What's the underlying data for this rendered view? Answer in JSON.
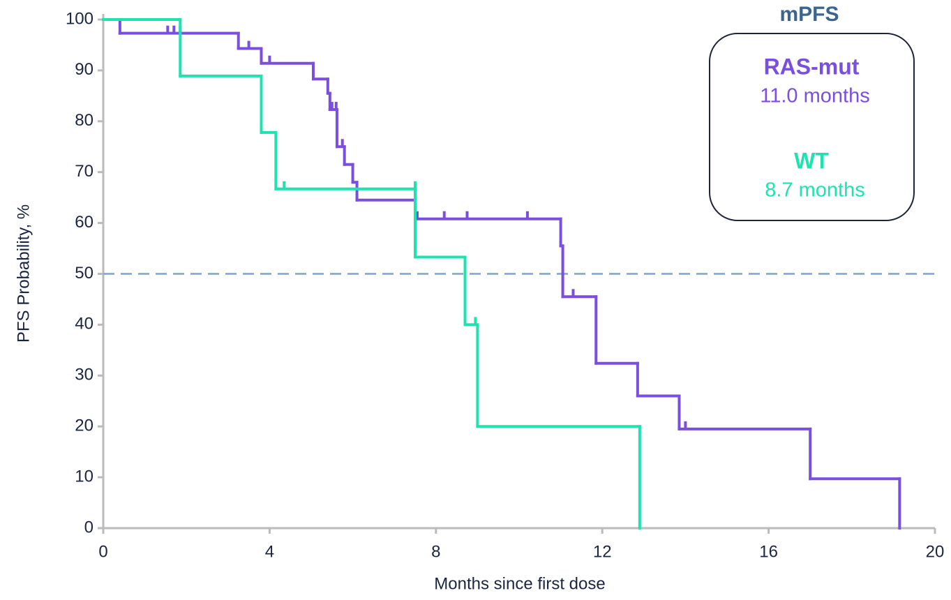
{
  "chart_data": {
    "type": "step",
    "x_label": "Months since first dose",
    "y_label": "PFS Probability, %",
    "xlim": [
      0,
      20
    ],
    "xticks": [
      0,
      4,
      8,
      12,
      16,
      20
    ],
    "ylim": [
      0,
      100
    ],
    "yticks": [
      0,
      10,
      20,
      30,
      40,
      50,
      60,
      70,
      80,
      90,
      100
    ],
    "reference_line": 50,
    "legend_title": "mPFS",
    "series": [
      {
        "name": "RAS-mut",
        "color": "#7a4fdf",
        "median_label": "11.0 months",
        "x": [
          0,
          0.4,
          3.25,
          3.8,
          5.05,
          5.4,
          5.45,
          5.62,
          5.8,
          6.0,
          6.1,
          7.5,
          11.0,
          11.05,
          11.85,
          12.85,
          13.85,
          17.0,
          19.15
        ],
        "values": [
          100,
          97.3,
          94.3,
          91.4,
          88.3,
          85.5,
          82.3,
          75.0,
          71.5,
          68.0,
          64.5,
          60.8,
          55.5,
          45.5,
          32.4,
          26.0,
          19.5,
          9.7,
          0
        ],
        "censored": {
          "x": [
            1.55,
            1.7,
            1.85,
            3.5,
            4.0,
            5.5,
            5.6,
            5.75,
            7.55,
            8.2,
            8.75,
            10.2,
            11.3,
            14.0
          ],
          "values": [
            97.3,
            97.3,
            97.3,
            94.3,
            91.4,
            82.3,
            82.3,
            75.0,
            60.8,
            60.8,
            60.8,
            60.8,
            45.5,
            19.5
          ]
        }
      },
      {
        "name": "WT",
        "color": "#1ee3b0",
        "median_label": "8.7 months",
        "x": [
          0,
          1.85,
          3.8,
          4.15,
          7.5,
          8.7,
          9.0,
          12.9
        ],
        "values": [
          100,
          88.9,
          77.8,
          66.7,
          53.3,
          40.0,
          20.0,
          0
        ],
        "censored": {
          "x": [
            4.35,
            7.5,
            8.95
          ],
          "values": [
            66.7,
            66.7,
            40.0
          ]
        }
      }
    ]
  }
}
